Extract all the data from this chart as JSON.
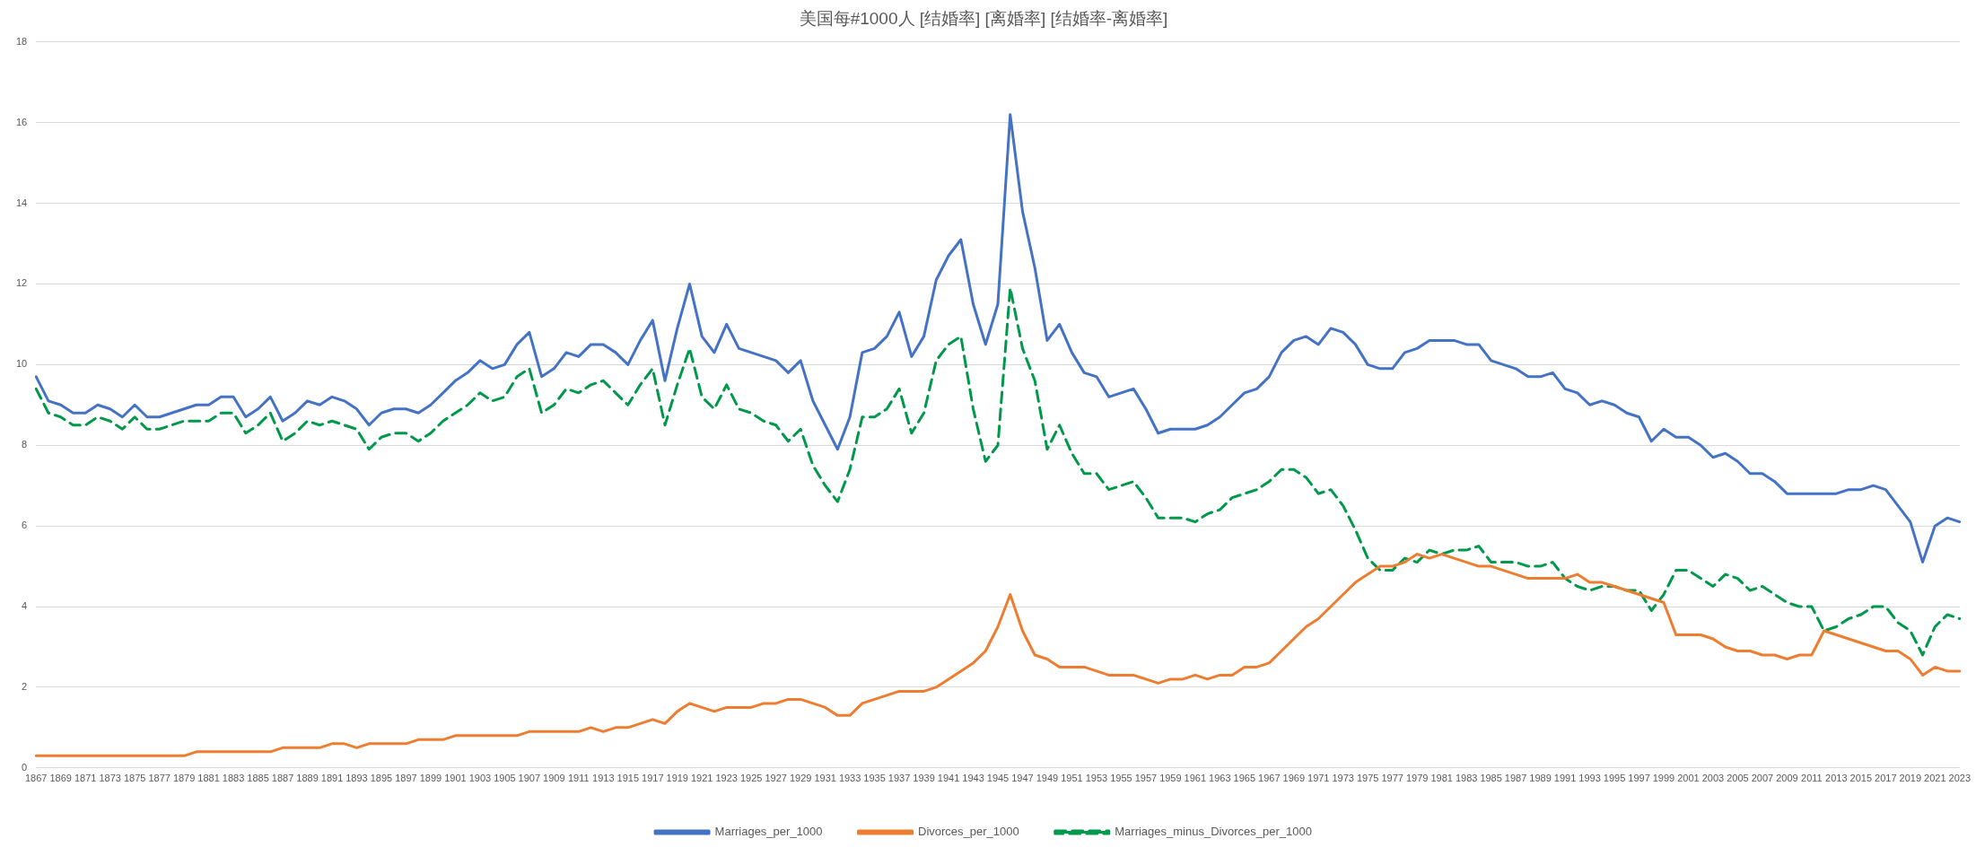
{
  "chart_data": {
    "type": "line",
    "title": "美国每#1000人 [结婚率] [离婚率] [结婚率-离婚率]",
    "categories": [
      "1867",
      null,
      "1869",
      null,
      "1871",
      null,
      "1873",
      null,
      "1875",
      null,
      "1877",
      null,
      "1879",
      null,
      "1881",
      null,
      "1883",
      null,
      "1885",
      null,
      "1887",
      null,
      "1889",
      null,
      "1891",
      null,
      "1893",
      null,
      "1895",
      null,
      "1897",
      null,
      "1899",
      null,
      "1901",
      null,
      "1903",
      null,
      "1905",
      null,
      "1907",
      null,
      "1909",
      null,
      "1911",
      null,
      "1913",
      null,
      "1915",
      null,
      "1917",
      null,
      "1919",
      null,
      "1921",
      null,
      "1923",
      null,
      "1925",
      null,
      "1927",
      null,
      "1929",
      null,
      "1931",
      null,
      "1933",
      null,
      "1935",
      null,
      "1937",
      null,
      "1939",
      null,
      "1941",
      null,
      "1943",
      null,
      "1945",
      null,
      "1947",
      null,
      "1949",
      null,
      "1951",
      null,
      "1953",
      null,
      "1955",
      null,
      "1957",
      null,
      "1959",
      null,
      "1961",
      null,
      "1963",
      null,
      "1965",
      null,
      "1967",
      null,
      "1969",
      null,
      "1971",
      null,
      "1973",
      null,
      "1975",
      null,
      "1977",
      null,
      "1979",
      null,
      "1981",
      null,
      "1983",
      null,
      "1985",
      null,
      "1987",
      null,
      "1989",
      null,
      "1991",
      null,
      "1993",
      null,
      "1995",
      null,
      "1997",
      null,
      "1999",
      null,
      "2001",
      null,
      "2003",
      null,
      "2005",
      null,
      "2007",
      null,
      "2009",
      null,
      "2011",
      null,
      "2013",
      null,
      "2015",
      null,
      "2017",
      null,
      "2019",
      null,
      "2021",
      null,
      "2023"
    ],
    "series": [
      {
        "name": "Marriages_per_1000",
        "color": "#4472c4",
        "line_style": "solid",
        "values": [
          9.7,
          9.1,
          9.0,
          8.8,
          8.8,
          9.0,
          8.9,
          8.7,
          9.0,
          8.7,
          8.7,
          8.8,
          8.9,
          9.0,
          9.0,
          9.2,
          9.2,
          8.7,
          8.9,
          9.2,
          8.6,
          8.8,
          9.1,
          9.0,
          9.2,
          9.1,
          8.9,
          8.5,
          8.8,
          8.9,
          8.9,
          8.8,
          9.0,
          9.3,
          9.6,
          9.8,
          10.1,
          9.9,
          10.0,
          10.5,
          10.8,
          9.7,
          9.9,
          10.3,
          10.2,
          10.5,
          10.5,
          10.3,
          10.0,
          10.6,
          11.1,
          9.6,
          10.9,
          12.0,
          10.7,
          10.3,
          11.0,
          10.4,
          10.3,
          10.2,
          10.1,
          9.8,
          10.1,
          9.1,
          8.5,
          7.9,
          8.7,
          10.3,
          10.4,
          10.7,
          11.3,
          10.2,
          10.7,
          12.1,
          12.7,
          13.1,
          11.5,
          10.5,
          11.5,
          16.2,
          13.8,
          12.4,
          10.6,
          11.0,
          10.3,
          9.8,
          9.7,
          9.2,
          9.3,
          9.4,
          8.9,
          8.3,
          8.4,
          8.4,
          8.4,
          8.5,
          8.7,
          9.0,
          9.3,
          9.4,
          9.7,
          10.3,
          10.6,
          10.7,
          10.5,
          10.9,
          10.8,
          10.5,
          10.0,
          9.9,
          9.9,
          10.3,
          10.4,
          10.6,
          10.6,
          10.6,
          10.5,
          10.5,
          10.1,
          10.0,
          9.9,
          9.7,
          9.7,
          9.8,
          9.4,
          9.3,
          9.0,
          9.1,
          9.0,
          8.8,
          8.7,
          8.1,
          8.4,
          8.2,
          8.2,
          8.0,
          7.7,
          7.8,
          7.6,
          7.3,
          7.3,
          7.1,
          6.8,
          6.8,
          6.8,
          6.8,
          6.8,
          6.9,
          6.9,
          7.0,
          6.9,
          6.5,
          6.1,
          5.1,
          6.0,
          6.2,
          6.1
        ]
      },
      {
        "name": "Divorces_per_1000",
        "color": "#ed7d31",
        "line_style": "solid",
        "values": [
          0.3,
          0.3,
          0.3,
          0.3,
          0.3,
          0.3,
          0.3,
          0.3,
          0.3,
          0.3,
          0.3,
          0.3,
          0.3,
          0.4,
          0.4,
          0.4,
          0.4,
          0.4,
          0.4,
          0.4,
          0.5,
          0.5,
          0.5,
          0.5,
          0.6,
          0.6,
          0.5,
          0.6,
          0.6,
          0.6,
          0.6,
          0.7,
          0.7,
          0.7,
          0.8,
          0.8,
          0.8,
          0.8,
          0.8,
          0.8,
          0.9,
          0.9,
          0.9,
          0.9,
          0.9,
          1.0,
          0.9,
          1.0,
          1.0,
          1.1,
          1.2,
          1.1,
          1.4,
          1.6,
          1.5,
          1.4,
          1.5,
          1.5,
          1.5,
          1.6,
          1.6,
          1.7,
          1.7,
          1.6,
          1.5,
          1.3,
          1.3,
          1.6,
          1.7,
          1.8,
          1.9,
          1.9,
          1.9,
          2.0,
          2.2,
          2.4,
          2.6,
          2.9,
          3.5,
          4.3,
          3.4,
          2.8,
          2.7,
          2.5,
          2.5,
          2.5,
          2.4,
          2.3,
          2.3,
          2.3,
          2.2,
          2.1,
          2.2,
          2.2,
          2.3,
          2.2,
          2.3,
          2.3,
          2.5,
          2.5,
          2.6,
          2.9,
          3.2,
          3.5,
          3.7,
          4.0,
          4.3,
          4.6,
          4.8,
          5.0,
          5.0,
          5.1,
          5.3,
          5.2,
          5.3,
          5.2,
          5.1,
          5.0,
          5.0,
          4.9,
          4.8,
          4.7,
          4.7,
          4.7,
          4.7,
          4.8,
          4.6,
          4.6,
          4.5,
          4.4,
          4.3,
          4.2,
          4.1,
          3.3,
          3.3,
          3.3,
          3.2,
          3.0,
          2.9,
          2.9,
          2.8,
          2.8,
          2.7,
          2.8,
          2.8,
          3.4,
          3.3,
          3.2,
          3.1,
          3.0,
          2.9,
          2.9,
          2.7,
          2.3,
          2.5,
          2.4,
          2.4
        ]
      },
      {
        "name": "Marriages_minus_Divorces_per_1000",
        "color": "#00984a",
        "line_style": "dashed",
        "values": [
          9.4,
          8.8,
          8.7,
          8.5,
          8.5,
          8.7,
          8.6,
          8.4,
          8.7,
          8.4,
          8.4,
          8.5,
          8.6,
          8.6,
          8.6,
          8.8,
          8.8,
          8.3,
          8.5,
          8.8,
          8.1,
          8.3,
          8.6,
          8.5,
          8.6,
          8.5,
          8.4,
          7.9,
          8.2,
          8.3,
          8.3,
          8.1,
          8.3,
          8.6,
          8.8,
          9.0,
          9.3,
          9.1,
          9.2,
          9.7,
          9.9,
          8.8,
          9.0,
          9.4,
          9.3,
          9.5,
          9.6,
          9.3,
          9.0,
          9.5,
          9.9,
          8.5,
          9.5,
          10.4,
          9.2,
          8.9,
          9.5,
          8.9,
          8.8,
          8.6,
          8.5,
          8.1,
          8.4,
          7.5,
          7.0,
          6.6,
          7.4,
          8.7,
          8.7,
          8.9,
          9.4,
          8.3,
          8.8,
          10.1,
          10.5,
          10.7,
          8.9,
          7.6,
          8.0,
          11.9,
          10.4,
          9.6,
          7.9,
          8.5,
          7.8,
          7.3,
          7.3,
          6.9,
          7.0,
          7.1,
          6.7,
          6.2,
          6.2,
          6.2,
          6.1,
          6.3,
          6.4,
          6.7,
          6.8,
          6.9,
          7.1,
          7.4,
          7.4,
          7.2,
          6.8,
          6.9,
          6.5,
          5.9,
          5.2,
          4.9,
          4.9,
          5.2,
          5.1,
          5.4,
          5.3,
          5.4,
          5.4,
          5.5,
          5.1,
          5.1,
          5.1,
          5.0,
          5.0,
          5.1,
          4.7,
          4.5,
          4.4,
          4.5,
          4.5,
          4.4,
          4.4,
          3.9,
          4.3,
          4.9,
          4.9,
          4.7,
          4.5,
          4.8,
          4.7,
          4.4,
          4.5,
          4.3,
          4.1,
          4.0,
          4.0,
          3.4,
          3.5,
          3.7,
          3.8,
          4.0,
          4.0,
          3.6,
          3.4,
          2.8,
          3.5,
          3.8,
          3.7
        ]
      }
    ],
    "ylim": [
      0,
      18
    ],
    "yticks": [
      0,
      2,
      4,
      6,
      8,
      10,
      12,
      14,
      16,
      18
    ],
    "grid": "y",
    "legend": "bottom",
    "marker": "none"
  }
}
